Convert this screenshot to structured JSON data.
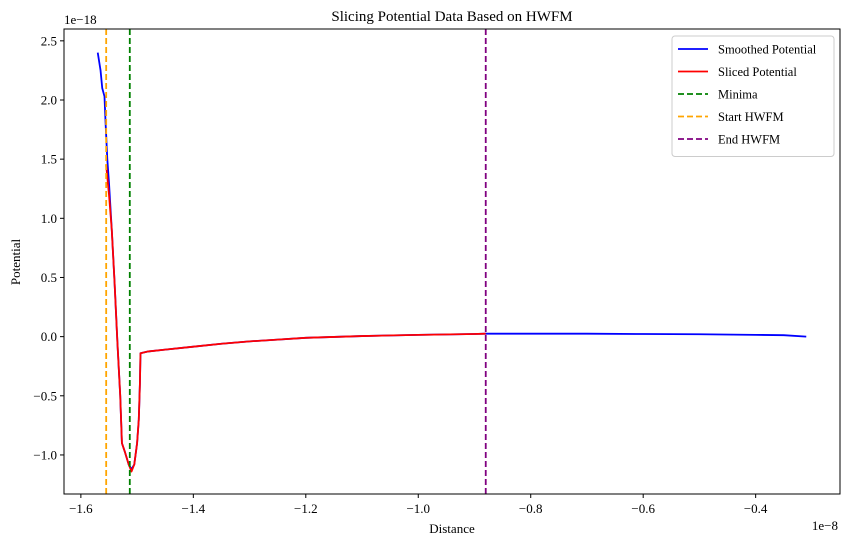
{
  "chart_data": {
    "type": "line",
    "title": "Slicing Potential Data Based on HWFM",
    "xlabel": "Distance",
    "ylabel": "Potential",
    "x_offset_text": "1e−8",
    "y_offset_text": "1e−18",
    "xlim": [
      -1.63,
      -0.25
    ],
    "ylim": [
      -1.33,
      2.6
    ],
    "x_ticks": [
      -1.6,
      -1.4,
      -1.2,
      -1.0,
      -0.8,
      -0.6,
      -0.4
    ],
    "x_tick_labels": [
      "−1.6",
      "−1.4",
      "−1.2",
      "−1.0",
      "−0.8",
      "−0.6",
      "−0.4"
    ],
    "y_ticks": [
      -1.0,
      -0.5,
      0.0,
      0.5,
      1.0,
      1.5,
      2.0,
      2.5
    ],
    "y_tick_labels": [
      "−1.0",
      "−0.5",
      "0.0",
      "0.5",
      "1.0",
      "1.5",
      "2.0",
      "2.5"
    ],
    "grid": false,
    "legend_position": "top-right",
    "series": [
      {
        "name": "Smoothed Potential",
        "color": "#0000ff",
        "style": "solid",
        "points": [
          [
            -1.57,
            2.4
          ],
          [
            -1.565,
            2.25
          ],
          [
            -1.562,
            2.1
          ],
          [
            -1.558,
            2.03
          ],
          [
            -1.556,
            1.8
          ],
          [
            -1.553,
            1.5
          ],
          [
            -1.55,
            1.3
          ],
          [
            -1.545,
            0.9
          ],
          [
            -1.54,
            0.45
          ],
          [
            -1.535,
            -0.05
          ],
          [
            -1.53,
            -0.5
          ],
          [
            -1.527,
            -0.9
          ],
          [
            -1.522,
            -0.97
          ],
          [
            -1.515,
            -1.08
          ],
          [
            -1.51,
            -1.12
          ],
          [
            -1.505,
            -1.08
          ],
          [
            -1.5,
            -0.9
          ],
          [
            -1.497,
            -0.7
          ],
          [
            -1.495,
            -0.4
          ],
          [
            -1.494,
            -0.14
          ],
          [
            -1.48,
            -0.125
          ],
          [
            -1.45,
            -0.11
          ],
          [
            -1.4,
            -0.085
          ],
          [
            -1.35,
            -0.06
          ],
          [
            -1.3,
            -0.04
          ],
          [
            -1.25,
            -0.025
          ],
          [
            -1.2,
            -0.01
          ],
          [
            -1.1,
            0.005
          ],
          [
            -1.0,
            0.015
          ],
          [
            -0.9,
            0.022
          ],
          [
            -0.88,
            0.025
          ],
          [
            -0.8,
            0.025
          ],
          [
            -0.7,
            0.025
          ],
          [
            -0.6,
            0.022
          ],
          [
            -0.5,
            0.02
          ],
          [
            -0.4,
            0.015
          ],
          [
            -0.35,
            0.012
          ],
          [
            -0.31,
            0.0
          ]
        ]
      },
      {
        "name": "Sliced Potential",
        "color": "#ff0000",
        "style": "solid",
        "points": [
          [
            -1.555,
            1.45
          ],
          [
            -1.553,
            1.35
          ],
          [
            -1.55,
            1.2
          ],
          [
            -1.545,
            0.9
          ],
          [
            -1.54,
            0.45
          ],
          [
            -1.535,
            -0.05
          ],
          [
            -1.53,
            -0.5
          ],
          [
            -1.527,
            -0.9
          ],
          [
            -1.522,
            -0.97
          ],
          [
            -1.515,
            -1.08
          ],
          [
            -1.51,
            -1.14
          ],
          [
            -1.505,
            -1.08
          ],
          [
            -1.5,
            -0.9
          ],
          [
            -1.497,
            -0.7
          ],
          [
            -1.495,
            -0.4
          ],
          [
            -1.494,
            -0.14
          ],
          [
            -1.48,
            -0.125
          ],
          [
            -1.45,
            -0.11
          ],
          [
            -1.4,
            -0.085
          ],
          [
            -1.35,
            -0.06
          ],
          [
            -1.3,
            -0.04
          ],
          [
            -1.25,
            -0.025
          ],
          [
            -1.2,
            -0.01
          ],
          [
            -1.1,
            0.005
          ],
          [
            -1.0,
            0.015
          ],
          [
            -0.9,
            0.022
          ],
          [
            -0.88,
            0.025
          ]
        ]
      },
      {
        "name": "Minima",
        "color": "#008000",
        "style": "dashed",
        "vline": -1.513
      },
      {
        "name": "Start HWFM",
        "color": "#ffa500",
        "style": "dashed",
        "vline": -1.555
      },
      {
        "name": "End HWFM",
        "color": "#800080",
        "style": "dashed",
        "vline": -0.88
      }
    ]
  }
}
